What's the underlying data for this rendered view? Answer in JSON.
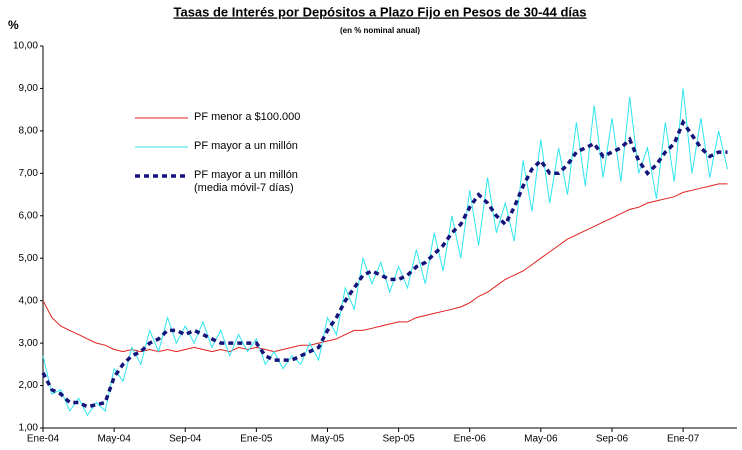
{
  "chart_data": {
    "type": "line",
    "title": "Tasas de Interés por Depósitos a Plazo Fijo en Pesos de 30-44 días",
    "subtitle": "(en % nominal anual)",
    "y_label": "%",
    "categories": [
      "Ene-04",
      null,
      null,
      null,
      null,
      null,
      null,
      null,
      "May-04",
      null,
      null,
      null,
      null,
      null,
      null,
      null,
      "Sep-04",
      null,
      null,
      null,
      null,
      null,
      null,
      null,
      "Ene-05",
      null,
      null,
      null,
      null,
      null,
      null,
      null,
      "May-05",
      null,
      null,
      null,
      null,
      null,
      null,
      null,
      "Sep-05",
      null,
      null,
      null,
      null,
      null,
      null,
      null,
      "Ene-06",
      null,
      null,
      null,
      null,
      null,
      null,
      null,
      "May-06",
      null,
      null,
      null,
      null,
      null,
      null,
      null,
      "Sep-06",
      null,
      null,
      null,
      null,
      null,
      null,
      null,
      "Ene-07",
      null,
      null,
      null,
      null,
      null
    ],
    "ylim": [
      1,
      10
    ],
    "yticks": [
      {
        "value": 1,
        "label": "1,00"
      },
      {
        "value": 2,
        "label": "2,00"
      },
      {
        "value": 3,
        "label": "3,00"
      },
      {
        "value": 4,
        "label": "4,00"
      },
      {
        "value": 5,
        "label": "5,00"
      },
      {
        "value": 6,
        "label": "6,00"
      },
      {
        "value": 7,
        "label": "7,00"
      },
      {
        "value": 8,
        "label": "8,00"
      },
      {
        "value": 9,
        "label": "9,00"
      },
      {
        "value": 10,
        "label": "10,00"
      }
    ],
    "grid": false,
    "series": [
      {
        "name": "PF menor a $100.000",
        "color": "#e0201b",
        "style": "solid",
        "values": [
          4.0,
          3.6,
          3.4,
          3.3,
          3.2,
          3.1,
          3.0,
          2.95,
          2.85,
          2.8,
          2.85,
          2.8,
          2.85,
          2.8,
          2.85,
          2.8,
          2.85,
          2.9,
          2.85,
          2.8,
          2.85,
          2.8,
          2.9,
          2.85,
          2.9,
          2.85,
          2.8,
          2.85,
          2.9,
          2.95,
          2.95,
          3.0,
          3.05,
          3.1,
          3.2,
          3.3,
          3.3,
          3.35,
          3.4,
          3.45,
          3.5,
          3.5,
          3.6,
          3.65,
          3.7,
          3.75,
          3.8,
          3.85,
          3.95,
          4.1,
          4.2,
          4.35,
          4.5,
          4.6,
          4.7,
          4.85,
          5.0,
          5.15,
          5.3,
          5.45,
          5.55,
          5.65,
          5.75,
          5.85,
          5.95,
          6.05,
          6.15,
          6.2,
          6.3,
          6.35,
          6.4,
          6.45,
          6.55,
          6.6,
          6.65,
          6.7,
          6.75,
          6.75
        ]
      },
      {
        "name": "PF mayor a un millón",
        "color": "#2fe6f0",
        "style": "solid",
        "values": [
          2.7,
          1.8,
          1.9,
          1.4,
          1.7,
          1.3,
          1.6,
          1.4,
          2.4,
          2.1,
          2.9,
          2.5,
          3.3,
          2.8,
          3.6,
          3.0,
          3.4,
          3.0,
          3.5,
          2.9,
          3.3,
          2.7,
          3.2,
          2.8,
          3.1,
          2.5,
          2.8,
          2.4,
          2.7,
          2.5,
          3.0,
          2.6,
          3.6,
          3.2,
          4.3,
          3.8,
          5.0,
          4.4,
          4.9,
          4.2,
          4.8,
          4.3,
          5.2,
          4.4,
          5.6,
          4.7,
          6.0,
          5.0,
          6.6,
          5.3,
          6.9,
          5.6,
          6.3,
          5.4,
          7.3,
          6.1,
          7.8,
          6.3,
          7.6,
          6.5,
          8.2,
          6.7,
          8.6,
          6.9,
          8.3,
          6.8,
          8.8,
          7.0,
          7.6,
          6.4,
          8.2,
          6.8,
          9.0,
          7.0,
          8.3,
          6.9,
          8.0,
          7.1
        ]
      },
      {
        "name": "PF mayor a un millón\n(media móvil-7 días)",
        "color": "#14147a",
        "style": "dashed",
        "values": [
          2.3,
          1.9,
          1.8,
          1.6,
          1.6,
          1.5,
          1.55,
          1.6,
          2.2,
          2.5,
          2.7,
          2.8,
          3.0,
          3.1,
          3.3,
          3.3,
          3.2,
          3.3,
          3.2,
          3.1,
          3.0,
          3.0,
          3.0,
          3.0,
          3.0,
          2.7,
          2.6,
          2.6,
          2.6,
          2.7,
          2.8,
          2.9,
          3.3,
          3.6,
          4.0,
          4.3,
          4.6,
          4.7,
          4.6,
          4.5,
          4.5,
          4.6,
          4.8,
          4.9,
          5.1,
          5.3,
          5.6,
          5.8,
          6.2,
          6.5,
          6.3,
          6.0,
          5.8,
          6.2,
          6.7,
          7.1,
          7.3,
          7.0,
          7.0,
          7.2,
          7.5,
          7.6,
          7.7,
          7.4,
          7.5,
          7.6,
          7.8,
          7.3,
          7.0,
          7.2,
          7.5,
          7.7,
          8.2,
          7.9,
          7.6,
          7.4,
          7.5,
          7.5
        ]
      }
    ]
  }
}
